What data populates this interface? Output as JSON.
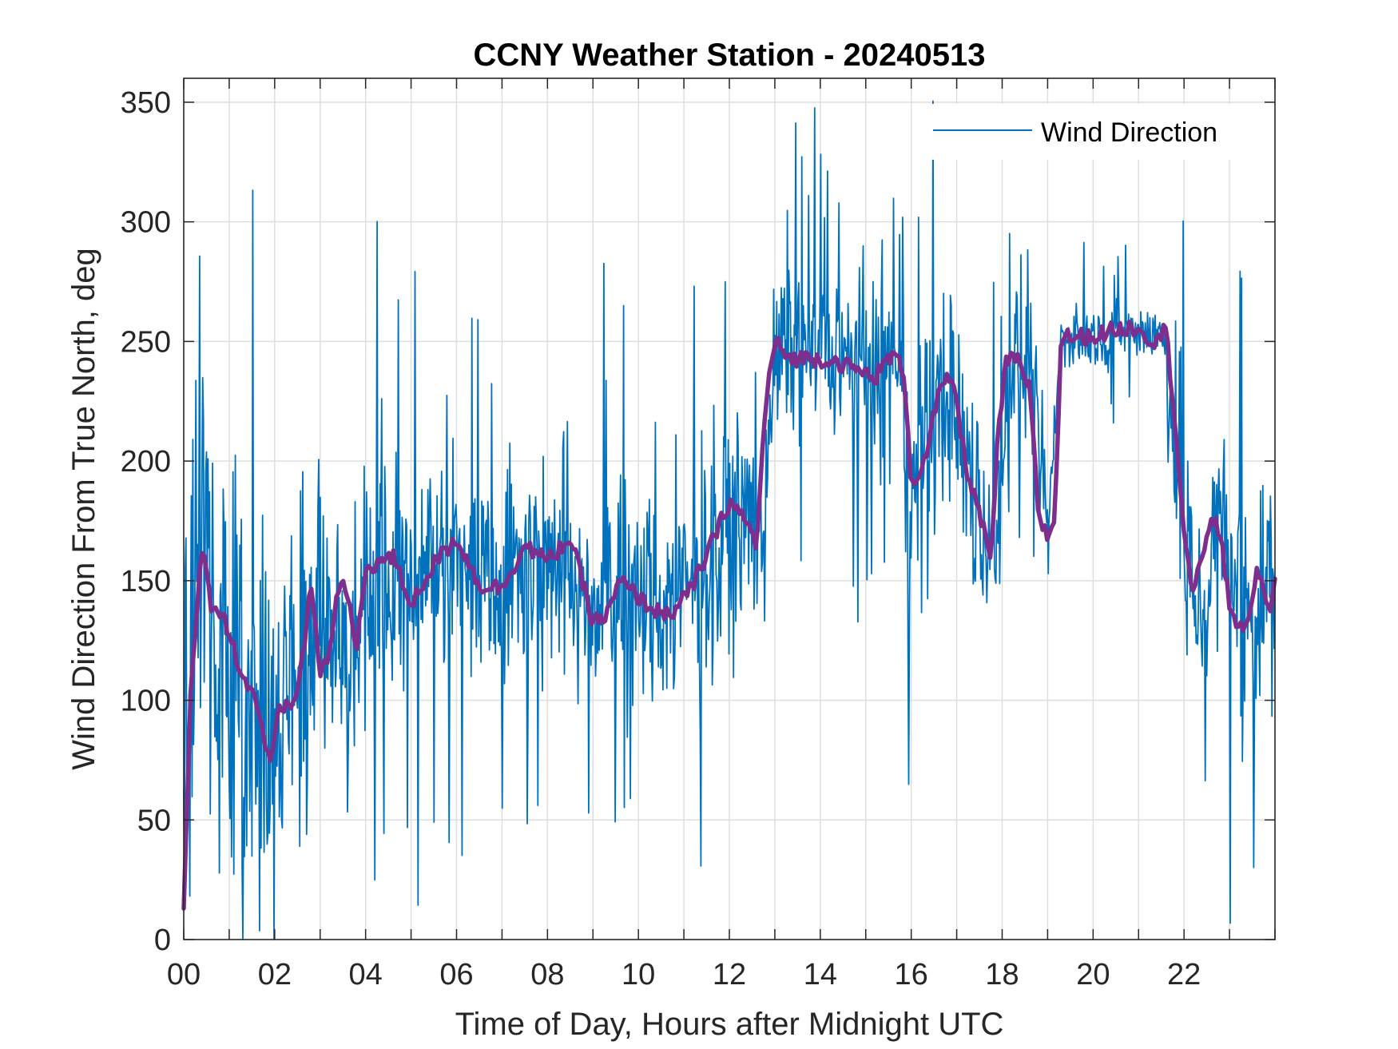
{
  "chart_data": {
    "type": "line",
    "title": "CCNY Weather Station - 20240513",
    "xlabel": "Time of Day, Hours after Midnight UTC",
    "ylabel": "Wind Direction From True North, deg",
    "xlim": [
      0,
      24
    ],
    "ylim": [
      0,
      360
    ],
    "x_ticks": [
      0,
      2,
      4,
      6,
      8,
      10,
      12,
      14,
      16,
      18,
      20,
      22
    ],
    "x_tick_labels": [
      "00",
      "02",
      "04",
      "06",
      "08",
      "10",
      "12",
      "14",
      "16",
      "18",
      "20",
      "22"
    ],
    "y_ticks": [
      0,
      50,
      100,
      150,
      200,
      250,
      300,
      350
    ],
    "y_tick_labels": [
      "0",
      "50",
      "100",
      "150",
      "200",
      "250",
      "300",
      "350"
    ],
    "grid": true,
    "legend_position": "top-right",
    "series": [
      {
        "name": "Wind Direction",
        "color": "#0072BD",
        "style": "thin-noisy-line",
        "baseline_profile": {
          "hours": [
            0,
            0.3,
            0.8,
            1.3,
            1.9,
            2.4,
            3.0,
            3.5,
            4.0,
            5.0,
            6.0,
            7.0,
            8.0,
            9.0,
            10.0,
            10.8,
            11.5,
            12.2,
            12.7,
            13.0,
            14.0,
            15.0,
            15.6,
            16.0,
            16.8,
            17.3,
            17.8,
            18.2,
            18.6,
            19.0,
            19.3,
            20.0,
            21.0,
            21.6,
            21.9,
            22.3,
            22.8,
            23.3,
            24.0
          ],
          "values": [
            20,
            160,
            135,
            110,
            75,
            95,
            140,
            115,
            150,
            155,
            160,
            155,
            162,
            145,
            140,
            140,
            155,
            180,
            170,
            245,
            245,
            238,
            240,
            185,
            235,
            190,
            160,
            243,
            240,
            168,
            252,
            252,
            255,
            252,
            170,
            140,
            170,
            135,
            150
          ],
          "noise_amplitude": {
            "hours": [
              0,
              2,
              4,
              8,
              12,
              13,
              16,
              18,
              19.3,
              21.6,
              22,
              24
            ],
            "values": [
              110,
              85,
              55,
              48,
              45,
              32,
              52,
              50,
              14,
              14,
              52,
              50
            ]
          }
        }
      },
      {
        "name": "",
        "color": "#7E2F8E",
        "style": "thick-smoothed-line",
        "smoothed_profile": {
          "hours": [
            0,
            0.15,
            0.4,
            0.6,
            0.8,
            1.0,
            1.3,
            1.6,
            1.9,
            2.1,
            2.4,
            2.6,
            2.8,
            3.0,
            3.2,
            3.4,
            3.6,
            3.8,
            4.0,
            4.3,
            4.6,
            5.0,
            5.5,
            6.0,
            6.5,
            7.0,
            7.5,
            8.0,
            8.5,
            9.0,
            9.3,
            9.6,
            10.0,
            10.4,
            10.8,
            11.2,
            11.6,
            12.0,
            12.3,
            12.6,
            12.8,
            13.0,
            13.3,
            13.8,
            14.3,
            14.8,
            15.2,
            15.6,
            15.85,
            16.0,
            16.3,
            16.6,
            16.9,
            17.2,
            17.5,
            17.75,
            17.9,
            18.1,
            18.3,
            18.6,
            18.8,
            19.0,
            19.15,
            19.3,
            19.6,
            20.0,
            20.5,
            21.0,
            21.3,
            21.6,
            21.8,
            22.0,
            22.2,
            22.4,
            22.6,
            22.8,
            23.0,
            23.3,
            23.6,
            23.9,
            24.0
          ],
          "values": [
            13,
            100,
            165,
            140,
            138,
            128,
            110,
            100,
            72,
            95,
            98,
            115,
            150,
            110,
            120,
            148,
            145,
            120,
            155,
            158,
            160,
            140,
            157,
            168,
            148,
            147,
            165,
            158,
            168,
            133,
            135,
            150,
            143,
            137,
            137,
            148,
            165,
            183,
            177,
            165,
            225,
            250,
            243,
            243,
            242,
            238,
            235,
            245,
            237,
            190,
            200,
            228,
            236,
            198,
            178,
            158,
            208,
            243,
            243,
            230,
            178,
            168,
            175,
            252,
            252,
            252,
            255,
            256,
            250,
            255,
            218,
            170,
            143,
            160,
            178,
            168,
            140,
            127,
            152,
            140,
            148
          ]
        }
      }
    ]
  }
}
